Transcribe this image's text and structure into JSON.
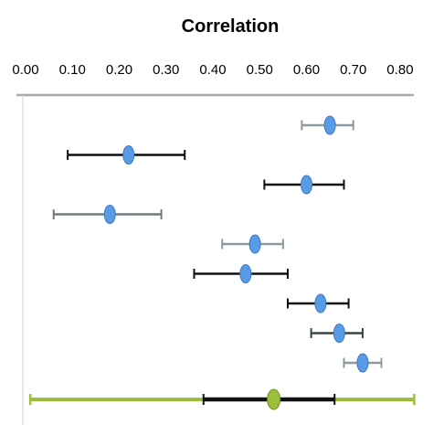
{
  "chart_data": {
    "type": "scatter",
    "title": "Correlation",
    "xlim": [
      0.0,
      0.8
    ],
    "ticks": [
      "0.00",
      "0.10",
      "0.20",
      "0.30",
      "0.40",
      "0.50",
      "0.60",
      "0.70",
      "0.80"
    ],
    "grid": false,
    "legend": "none",
    "point_color": "#5a9be6",
    "summary_color": "#9bbf3a",
    "rows": [
      {
        "estimate": 0.65,
        "lower": 0.59,
        "upper": 0.7,
        "whisker_color": "#8d9aa0"
      },
      {
        "estimate": 0.22,
        "lower": 0.09,
        "upper": 0.34,
        "whisker_color": "#111111"
      },
      {
        "estimate": 0.6,
        "lower": 0.51,
        "upper": 0.68,
        "whisker_color": "#111111"
      },
      {
        "estimate": 0.18,
        "lower": 0.06,
        "upper": 0.29,
        "whisker_color": "#6e7c80"
      },
      {
        "estimate": 0.49,
        "lower": 0.42,
        "upper": 0.55,
        "whisker_color": "#8d9aa0"
      },
      {
        "estimate": 0.47,
        "lower": 0.36,
        "upper": 0.56,
        "whisker_color": "#111111"
      },
      {
        "estimate": 0.63,
        "lower": 0.56,
        "upper": 0.69,
        "whisker_color": "#111111"
      },
      {
        "estimate": 0.67,
        "lower": 0.61,
        "upper": 0.72,
        "whisker_color": "#3a4446"
      },
      {
        "estimate": 0.72,
        "lower": 0.68,
        "upper": 0.76,
        "whisker_color": "#8d9aa0"
      }
    ],
    "summary": {
      "estimate": 0.53,
      "ci_lower": 0.38,
      "ci_upper": 0.66,
      "pi_lower": 0.01,
      "pi_upper": 0.83
    }
  }
}
